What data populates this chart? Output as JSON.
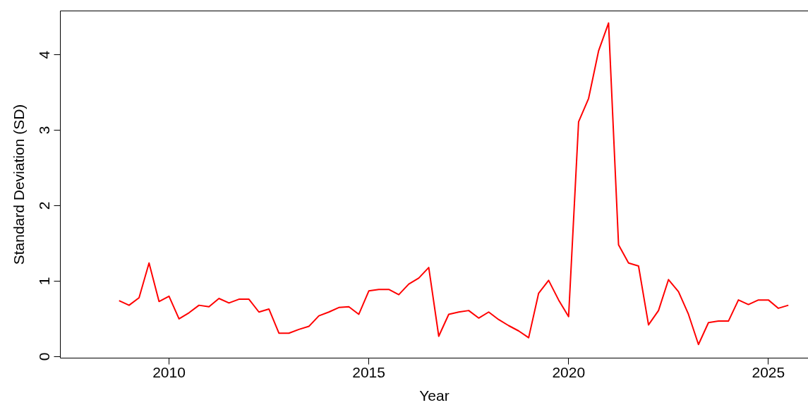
{
  "chart_data": {
    "type": "line",
    "xlabel": "Year",
    "ylabel": "Standard Deviation (SD)",
    "x": [
      2008.75,
      2009.0,
      2009.25,
      2009.5,
      2009.75,
      2010.0,
      2010.25,
      2010.5,
      2010.75,
      2011.0,
      2011.25,
      2011.5,
      2011.75,
      2012.0,
      2012.25,
      2012.5,
      2012.75,
      2013.0,
      2013.25,
      2013.5,
      2013.75,
      2014.0,
      2014.25,
      2014.5,
      2014.75,
      2015.0,
      2015.25,
      2015.5,
      2015.75,
      2016.0,
      2016.25,
      2016.5,
      2016.75,
      2017.0,
      2017.25,
      2017.5,
      2017.75,
      2018.0,
      2018.25,
      2018.5,
      2018.75,
      2019.0,
      2019.25,
      2019.5,
      2019.75,
      2020.0,
      2020.25,
      2020.5,
      2020.75,
      2021.0,
      2021.25,
      2021.5,
      2021.75,
      2022.0,
      2022.25,
      2022.5,
      2022.75,
      2023.0,
      2023.25,
      2023.5,
      2023.75,
      2024.0,
      2024.25,
      2024.5,
      2024.75,
      2025.0,
      2025.25,
      2025.5
    ],
    "series": [
      {
        "color": "#ff0000",
        "values": [
          0.74,
          0.68,
          0.78,
          1.24,
          0.73,
          0.8,
          0.5,
          0.58,
          0.68,
          0.66,
          0.77,
          0.71,
          0.76,
          0.76,
          0.59,
          0.63,
          0.31,
          0.31,
          0.36,
          0.4,
          0.54,
          0.59,
          0.65,
          0.66,
          0.56,
          0.87,
          0.89,
          0.89,
          0.82,
          0.96,
          1.04,
          1.18,
          0.27,
          0.56,
          0.59,
          0.61,
          0.51,
          0.59,
          0.49,
          0.41,
          0.34,
          0.25,
          0.84,
          1.01,
          0.75,
          0.53,
          3.11,
          3.42,
          4.05,
          4.42,
          1.48,
          1.24,
          1.2,
          0.42,
          0.61,
          1.02,
          0.86,
          0.56,
          0.16,
          0.45,
          0.47,
          0.47,
          0.75,
          0.69,
          0.75,
          0.75,
          0.64,
          0.68
        ]
      }
    ],
    "xlim": [
      2007.28,
      2026.0
    ],
    "xticks": [
      2010,
      2015,
      2020,
      2025
    ],
    "ylim": [
      -0.02,
      4.58
    ],
    "yticks": [
      0,
      1,
      2,
      3,
      4
    ],
    "line_style": "solid"
  }
}
